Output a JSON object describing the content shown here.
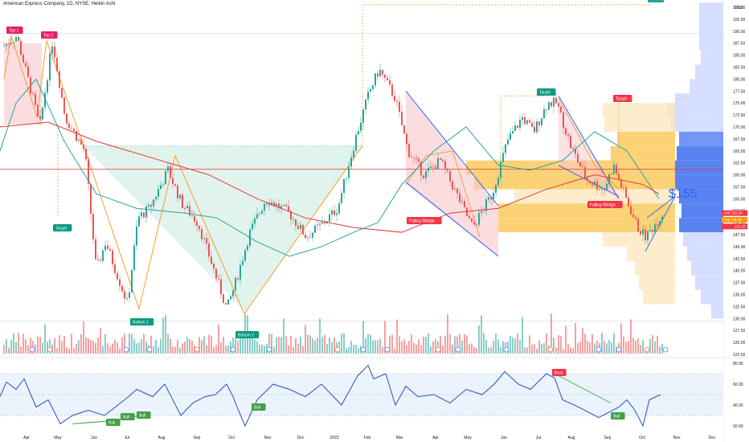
{
  "header": {
    "title": "American Express Company, 1D, NYSE, Heikin Ashi"
  },
  "axes": {
    "currency": "USD",
    "price_ticks": [
      "195.00",
      "192.50",
      "190.00",
      "187.50",
      "185.00",
      "182.50",
      "180.00",
      "177.50",
      "175.00",
      "172.50",
      "170.00",
      "167.50",
      "165.00",
      "162.50",
      "160.00",
      "157.50",
      "155.00",
      "152.50",
      "150.00",
      "147.50",
      "145.00",
      "142.50",
      "140.00",
      "137.50",
      "135.00",
      "132.50",
      "130.00",
      "127.50",
      "125.00",
      "122.50"
    ],
    "rsi_ticks": [
      "80.00",
      "60.00",
      "40.00",
      "20.00"
    ],
    "time_ticks": [
      "Apr",
      "May",
      "Jun",
      "Jul",
      "Aug",
      "Sep",
      "Oct",
      "Nov",
      "Dec",
      "2023",
      "Feb",
      "Mar",
      "Apr",
      "May",
      "Jun",
      "Jul",
      "Aug",
      "Sep",
      "Oct",
      "Nov",
      "Dec"
    ]
  },
  "price_badges": {
    "symbol": "AXP",
    "last": "152.34",
    "mid_label": "Hey",
    "mid": "151.60",
    "low": "151.53"
  },
  "annotations": {
    "top1": "Top 1",
    "top2": "Top 2",
    "target_left": "Target",
    "bottom1": "Bottom 1",
    "bottom2": "Bottom 2",
    "fw1": "Falling Wedge",
    "target_mid": "Target",
    "fw2": "Falling Wedge",
    "target_right": "Target",
    "projection": "$155",
    "rsi_bull": "Bull",
    "rsi_bear": "Bear"
  },
  "colors": {
    "up": "#26a69a",
    "down": "#ef5350",
    "ma_green": "#26a69a",
    "ma_red": "#e53935",
    "orange": "#f7931a",
    "wedge": "#2962ff",
    "rsi": "#2a4dc4"
  },
  "chart_data": {
    "type": "candlestick",
    "title": "American Express Company, 1D, NYSE, Heikin Ashi",
    "ylim": [
      121,
      196
    ],
    "close_series": [
      [
        "2022-03-28",
        187
      ],
      [
        "2022-04-08",
        189
      ],
      [
        "2022-04-21",
        177
      ],
      [
        "2022-04-28",
        170
      ],
      [
        "2022-05-09",
        188
      ],
      [
        "2022-05-20",
        172
      ],
      [
        "2022-06-06",
        165
      ],
      [
        "2022-06-16",
        140
      ],
      [
        "2022-06-24",
        146
      ],
      [
        "2022-07-13",
        133
      ],
      [
        "2022-07-22",
        151
      ],
      [
        "2022-08-01",
        153
      ],
      [
        "2022-08-17",
        161
      ],
      [
        "2022-08-29",
        154
      ],
      [
        "2022-09-12",
        150
      ],
      [
        "2022-09-26",
        140
      ],
      [
        "2022-10-07",
        132
      ],
      [
        "2022-10-14",
        137
      ],
      [
        "2022-10-27",
        148
      ],
      [
        "2022-11-10",
        155
      ],
      [
        "2022-11-30",
        152
      ],
      [
        "2022-12-15",
        147
      ],
      [
        "2022-12-30",
        150
      ],
      [
        "2023-01-11",
        153
      ],
      [
        "2023-01-27",
        168
      ],
      [
        "2023-02-07",
        177
      ],
      [
        "2023-02-16",
        182
      ],
      [
        "2023-03-02",
        176
      ],
      [
        "2023-03-13",
        165
      ],
      [
        "2023-03-27",
        160
      ],
      [
        "2023-04-10",
        163
      ],
      [
        "2023-04-24",
        156
      ],
      [
        "2023-05-08",
        149
      ],
      [
        "2023-05-25",
        156
      ],
      [
        "2023-06-07",
        167
      ],
      [
        "2023-06-20",
        172
      ],
      [
        "2023-06-30",
        169
      ],
      [
        "2023-07-12",
        175
      ],
      [
        "2023-07-20",
        175
      ],
      [
        "2023-08-01",
        166
      ],
      [
        "2023-08-15",
        159
      ],
      [
        "2023-08-30",
        157
      ],
      [
        "2023-09-07",
        162
      ],
      [
        "2023-09-18",
        155
      ],
      [
        "2023-09-28",
        149
      ],
      [
        "2023-10-05",
        147
      ],
      [
        "2023-10-20",
        152
      ]
    ],
    "rsi": {
      "ylim": [
        15,
        85
      ],
      "values": [
        [
          0,
          48
        ],
        [
          8,
          62
        ],
        [
          20,
          55
        ],
        [
          30,
          65
        ],
        [
          45,
          38
        ],
        [
          60,
          45
        ],
        [
          75,
          22
        ],
        [
          90,
          30
        ],
        [
          110,
          35
        ],
        [
          130,
          30
        ],
        [
          150,
          42
        ],
        [
          160,
          48
        ],
        [
          170,
          55
        ],
        [
          190,
          48
        ],
        [
          205,
          60
        ],
        [
          225,
          30
        ],
        [
          240,
          42
        ],
        [
          255,
          48
        ],
        [
          268,
          50
        ],
        [
          282,
          60
        ],
        [
          290,
          48
        ],
        [
          295,
          38
        ],
        [
          305,
          20
        ],
        [
          320,
          45
        ],
        [
          340,
          60
        ],
        [
          360,
          55
        ],
        [
          380,
          48
        ],
        [
          400,
          60
        ],
        [
          410,
          52
        ],
        [
          425,
          40
        ],
        [
          445,
          68
        ],
        [
          458,
          78
        ],
        [
          465,
          65
        ],
        [
          480,
          70
        ],
        [
          492,
          40
        ],
        [
          505,
          58
        ],
        [
          520,
          48
        ],
        [
          540,
          50
        ],
        [
          560,
          42
        ],
        [
          580,
          55
        ],
        [
          600,
          50
        ],
        [
          615,
          60
        ],
        [
          628,
          72
        ],
        [
          645,
          60
        ],
        [
          660,
          55
        ],
        [
          680,
          70
        ],
        [
          690,
          66
        ],
        [
          700,
          45
        ],
        [
          720,
          38
        ],
        [
          745,
          28
        ],
        [
          770,
          38
        ],
        [
          780,
          45
        ],
        [
          790,
          35
        ],
        [
          800,
          20
        ],
        [
          808,
          45
        ],
        [
          822,
          50
        ]
      ]
    },
    "moving_averages": [
      {
        "color": "#26a69a",
        "points": [
          [
            0,
            165
          ],
          [
            20,
            175
          ],
          [
            45,
            180
          ],
          [
            80,
            167
          ],
          [
            120,
            156
          ],
          [
            170,
            153
          ],
          [
            230,
            152
          ],
          [
            270,
            151
          ],
          [
            320,
            146
          ],
          [
            360,
            143
          ],
          [
            400,
            145
          ],
          [
            440,
            148
          ],
          [
            470,
            150
          ],
          [
            500,
            158
          ],
          [
            540,
            165
          ],
          [
            580,
            170
          ],
          [
            620,
            162
          ],
          [
            660,
            161
          ],
          [
            700,
            163
          ],
          [
            740,
            169
          ],
          [
            780,
            165
          ],
          [
            820,
            155
          ]
        ]
      },
      {
        "color": "#e53935",
        "points": [
          [
            0,
            170
          ],
          [
            60,
            171
          ],
          [
            120,
            167
          ],
          [
            200,
            163
          ],
          [
            260,
            160
          ],
          [
            320,
            155
          ],
          [
            380,
            151
          ],
          [
            440,
            149
          ],
          [
            500,
            148
          ],
          [
            560,
            152
          ],
          [
            620,
            153
          ],
          [
            680,
            157
          ],
          [
            740,
            160
          ],
          [
            800,
            158
          ],
          [
            820,
            156
          ]
        ]
      }
    ],
    "horizontal_lines": [
      {
        "price": 161.2,
        "color": "#e53935"
      }
    ]
  }
}
